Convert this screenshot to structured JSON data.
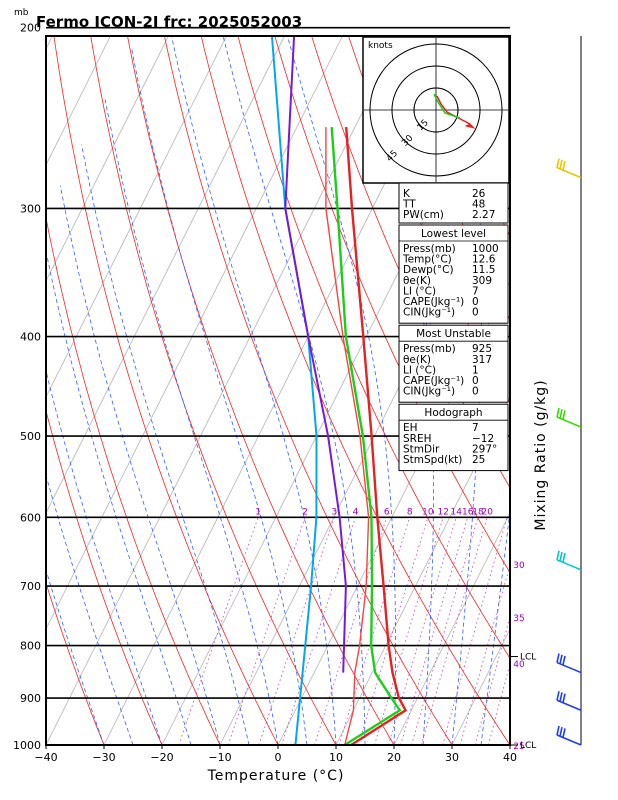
{
  "chart_data": {
    "type": "skew-t",
    "title": "Fermo ICON-2I frc: 2025052003",
    "pressure_unit": "mb",
    "xlabel": "Temperature (°C)",
    "right_label": "Mixing Ratio (g/kg)",
    "xlim": [
      -40,
      40
    ],
    "ylim": [
      1000,
      100
    ],
    "x_ticks": [
      -40,
      -30,
      -20,
      -10,
      0,
      10,
      20,
      30,
      40
    ],
    "pressure_ticks": [
      1000,
      900,
      800,
      700,
      600,
      500,
      400,
      300,
      200
    ],
    "mixing_ratio_labels": [
      "1",
      "2",
      "3",
      "4",
      "6",
      "8",
      "10",
      "12",
      "14",
      "16",
      "18",
      "20",
      "25",
      "30",
      "35",
      "40"
    ],
    "temperature_profile": {
      "p": [
        1000,
        925,
        900,
        850,
        800,
        700,
        600,
        500,
        400,
        300,
        250
      ],
      "t": [
        12.6,
        19,
        16.8,
        13.5,
        10.5,
        4.5,
        -2.5,
        -10.5,
        -20.5,
        -33.5,
        -41.5
      ]
    },
    "dewpoint_profile": {
      "p": [
        1000,
        925,
        900,
        850,
        800,
        700,
        600,
        500,
        400,
        300,
        250
      ],
      "t": [
        11.5,
        18,
        15.5,
        10.5,
        7.5,
        2.5,
        -3.5,
        -12,
        -23.5,
        -36,
        -44
      ]
    },
    "parcel_profile": {
      "p": [
        1000,
        925,
        850,
        800,
        700,
        600,
        500,
        400,
        300,
        250
      ],
      "t": [
        11.5,
        10,
        7,
        5.5,
        1.5,
        -4,
        -12.5,
        -24,
        -38,
        -45
      ]
    },
    "wetbulb_profile": {
      "p": [
        850,
        700,
        600,
        500,
        400,
        300,
        200,
        120
      ],
      "t": [
        5,
        -2,
        -9,
        -18,
        -30,
        -45,
        -59,
        -76
      ]
    },
    "frost_profile": {
      "p": [
        1000,
        850,
        700,
        600,
        500,
        400,
        300,
        200,
        120
      ],
      "t": [
        3,
        -2,
        -8,
        -13,
        -20,
        -30,
        -45,
        -63,
        -85
      ]
    },
    "lcl_labels": [
      {
        "p": 1000,
        "text": "LCL"
      },
      {
        "p": 820,
        "text": "LCL"
      }
    ],
    "wind_barbs": [
      {
        "p": 1000,
        "color": "#1e3cff"
      },
      {
        "p": 925,
        "color": "#1e3cff"
      },
      {
        "p": 850,
        "color": "#1e3cff"
      },
      {
        "p": 675,
        "color": "#00c8c8"
      },
      {
        "p": 490,
        "color": "#32dc00"
      },
      {
        "p": 280,
        "color": "#e6c800"
      }
    ],
    "hodograph": {
      "unit": "knots",
      "rings": [
        15,
        30,
        45
      ],
      "ring_labels": [
        "15",
        "30",
        "45"
      ]
    }
  },
  "indices": {
    "top": [
      {
        "label": "K",
        "value": "26"
      },
      {
        "label": "TT",
        "value": "48"
      },
      {
        "label": "PW(cm)",
        "value": "2.27"
      }
    ],
    "lowest_level": {
      "heading": "Lowest level",
      "rows": [
        {
          "label": "Press(mb)",
          "value": "1000"
        },
        {
          "label": "Temp(°C)",
          "value": "12.6"
        },
        {
          "label": "Dewp(°C)",
          "value": "11.5"
        },
        {
          "label": "θe(K)",
          "value": "309"
        },
        {
          "label": "LI (°C)",
          "value": "7"
        },
        {
          "label": "CAPE(Jkg⁻¹)",
          "value": "0"
        },
        {
          "label": "CIN(Jkg⁻¹)",
          "value": "0"
        }
      ]
    },
    "most_unstable": {
      "heading": "Most Unstable",
      "rows": [
        {
          "label": "Press(mb)",
          "value": "925"
        },
        {
          "label": "θe(K)",
          "value": "317"
        },
        {
          "label": "LI (°C)",
          "value": "1"
        },
        {
          "label": "CAPE(Jkg⁻¹)",
          "value": "0"
        },
        {
          "label": "CIN(Jkg⁻¹)",
          "value": "0"
        }
      ]
    },
    "hodograph_box": {
      "heading": "Hodograph",
      "rows": [
        {
          "label": "EH",
          "value": "7"
        },
        {
          "label": "SREH",
          "value": "−12"
        },
        {
          "label": "StmDir",
          "value": "297°"
        },
        {
          "label": "StmSpd(kt)",
          "value": "25"
        }
      ]
    }
  }
}
